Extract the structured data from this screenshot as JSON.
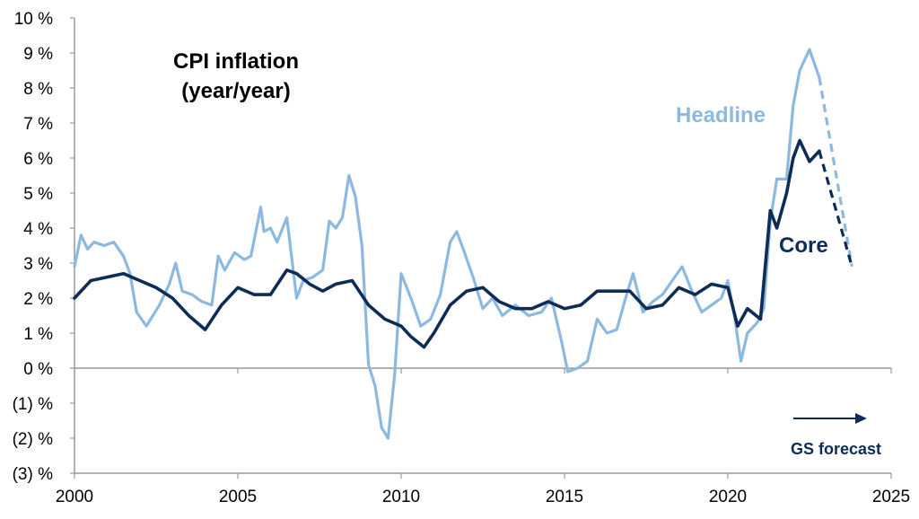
{
  "chart_data": {
    "type": "line",
    "title": "CPI inflation",
    "subtitle": "(year/year)",
    "xlim": [
      2000,
      2025
    ],
    "ylim": [
      -3,
      10
    ],
    "x_ticks": [
      {
        "value": 2000,
        "label": "2000"
      },
      {
        "value": 2005,
        "label": "2005"
      },
      {
        "value": 2010,
        "label": "2010"
      },
      {
        "value": 2015,
        "label": "2015"
      },
      {
        "value": 2020,
        "label": "2020"
      },
      {
        "value": 2025,
        "label": "2025"
      }
    ],
    "y_ticks": [
      {
        "value": 10,
        "label": "10 %"
      },
      {
        "value": 9,
        "label": "9 %"
      },
      {
        "value": 8,
        "label": "8 %"
      },
      {
        "value": 7,
        "label": "7 %"
      },
      {
        "value": 6,
        "label": "6 %"
      },
      {
        "value": 5,
        "label": "5 %"
      },
      {
        "value": 4,
        "label": "4 %"
      },
      {
        "value": 3,
        "label": "3 %"
      },
      {
        "value": 2,
        "label": "2 %"
      },
      {
        "value": 1,
        "label": "1 %"
      },
      {
        "value": 0,
        "label": "0 %"
      },
      {
        "value": -1,
        "label": "(1) %"
      },
      {
        "value": -2,
        "label": "(2) %"
      },
      {
        "value": -3,
        "label": "(3) %"
      }
    ],
    "grid": false,
    "series": [
      {
        "name": "Headline",
        "color": "#8db9e0",
        "x": [
          2000.0,
          2000.2,
          2000.4,
          2000.6,
          2000.9,
          2001.2,
          2001.5,
          2001.7,
          2001.9,
          2002.2,
          2002.4,
          2002.6,
          2002.9,
          2003.1,
          2003.3,
          2003.6,
          2003.9,
          2004.2,
          2004.4,
          2004.6,
          2004.9,
          2005.2,
          2005.4,
          2005.7,
          2005.8,
          2006.0,
          2006.2,
          2006.5,
          2006.8,
          2007.0,
          2007.3,
          2007.6,
          2007.8,
          2008.0,
          2008.2,
          2008.4,
          2008.6,
          2008.8,
          2009.0,
          2009.2,
          2009.4,
          2009.6,
          2009.8,
          2010.0,
          2010.3,
          2010.6,
          2010.9,
          2011.2,
          2011.5,
          2011.7,
          2011.9,
          2012.2,
          2012.5,
          2012.8,
          2013.1,
          2013.5,
          2013.9,
          2014.3,
          2014.6,
          2014.9,
          2015.1,
          2015.4,
          2015.7,
          2016.0,
          2016.3,
          2016.6,
          2016.9,
          2017.1,
          2017.4,
          2017.7,
          2018.0,
          2018.3,
          2018.6,
          2018.9,
          2019.2,
          2019.5,
          2019.8,
          2020.0,
          2020.2,
          2020.4,
          2020.6,
          2020.9,
          2021.1,
          2021.3,
          2021.5,
          2021.8,
          2022.0,
          2022.2,
          2022.5,
          2022.8
        ],
        "values": [
          2.9,
          3.8,
          3.4,
          3.6,
          3.5,
          3.6,
          3.2,
          2.7,
          1.6,
          1.2,
          1.5,
          1.8,
          2.4,
          3.0,
          2.2,
          2.1,
          1.9,
          1.8,
          3.2,
          2.8,
          3.3,
          3.1,
          3.2,
          4.6,
          3.9,
          4.0,
          3.6,
          4.3,
          2.0,
          2.5,
          2.6,
          2.8,
          4.2,
          4.0,
          4.3,
          5.5,
          4.9,
          3.5,
          0.1,
          -0.5,
          -1.7,
          -2.0,
          -0.2,
          2.7,
          2.0,
          1.2,
          1.4,
          2.1,
          3.6,
          3.9,
          3.4,
          2.6,
          1.7,
          2.0,
          1.5,
          1.8,
          1.5,
          1.6,
          2.0,
          0.8,
          -0.1,
          0.0,
          0.2,
          1.4,
          1.0,
          1.1,
          2.1,
          2.7,
          1.6,
          1.9,
          2.1,
          2.5,
          2.9,
          2.2,
          1.6,
          1.8,
          2.0,
          2.5,
          1.5,
          0.2,
          1.0,
          1.3,
          1.7,
          4.2,
          5.4,
          5.4,
          7.5,
          8.5,
          9.1,
          8.3
        ]
      },
      {
        "name": "Core",
        "color": "#0d2d57",
        "x": [
          2000.0,
          2000.5,
          2001.0,
          2001.5,
          2002.0,
          2002.5,
          2003.0,
          2003.5,
          2004.0,
          2004.5,
          2005.0,
          2005.5,
          2006.0,
          2006.5,
          2006.8,
          2007.2,
          2007.6,
          2008.0,
          2008.5,
          2009.0,
          2009.5,
          2010.0,
          2010.3,
          2010.7,
          2011.0,
          2011.5,
          2012.0,
          2012.5,
          2013.0,
          2013.5,
          2014.0,
          2014.5,
          2015.0,
          2015.5,
          2016.0,
          2016.5,
          2017.0,
          2017.5,
          2018.0,
          2018.5,
          2019.0,
          2019.5,
          2020.0,
          2020.3,
          2020.6,
          2021.0,
          2021.3,
          2021.5,
          2021.8,
          2022.0,
          2022.2,
          2022.5,
          2022.8
        ],
        "values": [
          2.0,
          2.5,
          2.6,
          2.7,
          2.5,
          2.3,
          2.0,
          1.5,
          1.1,
          1.8,
          2.3,
          2.1,
          2.1,
          2.8,
          2.7,
          2.4,
          2.2,
          2.4,
          2.5,
          1.8,
          1.4,
          1.2,
          0.9,
          0.6,
          1.0,
          1.8,
          2.2,
          2.3,
          1.9,
          1.7,
          1.7,
          1.9,
          1.7,
          1.8,
          2.2,
          2.2,
          2.2,
          1.7,
          1.8,
          2.3,
          2.1,
          2.4,
          2.3,
          1.2,
          1.7,
          1.4,
          4.5,
          4.0,
          5.0,
          6.0,
          6.5,
          5.9,
          6.2
        ]
      }
    ],
    "forecast": [
      {
        "name": "Headline",
        "color": "#8db9e0",
        "x": [
          2022.8,
          2023.8
        ],
        "values": [
          8.3,
          2.9
        ]
      },
      {
        "name": "Core",
        "color": "#0d2d57",
        "x": [
          2022.8,
          2023.8
        ],
        "values": [
          6.2,
          2.9
        ]
      }
    ],
    "labels": {
      "headline": "Headline",
      "core": "Core",
      "forecast": "GS forecast"
    }
  }
}
